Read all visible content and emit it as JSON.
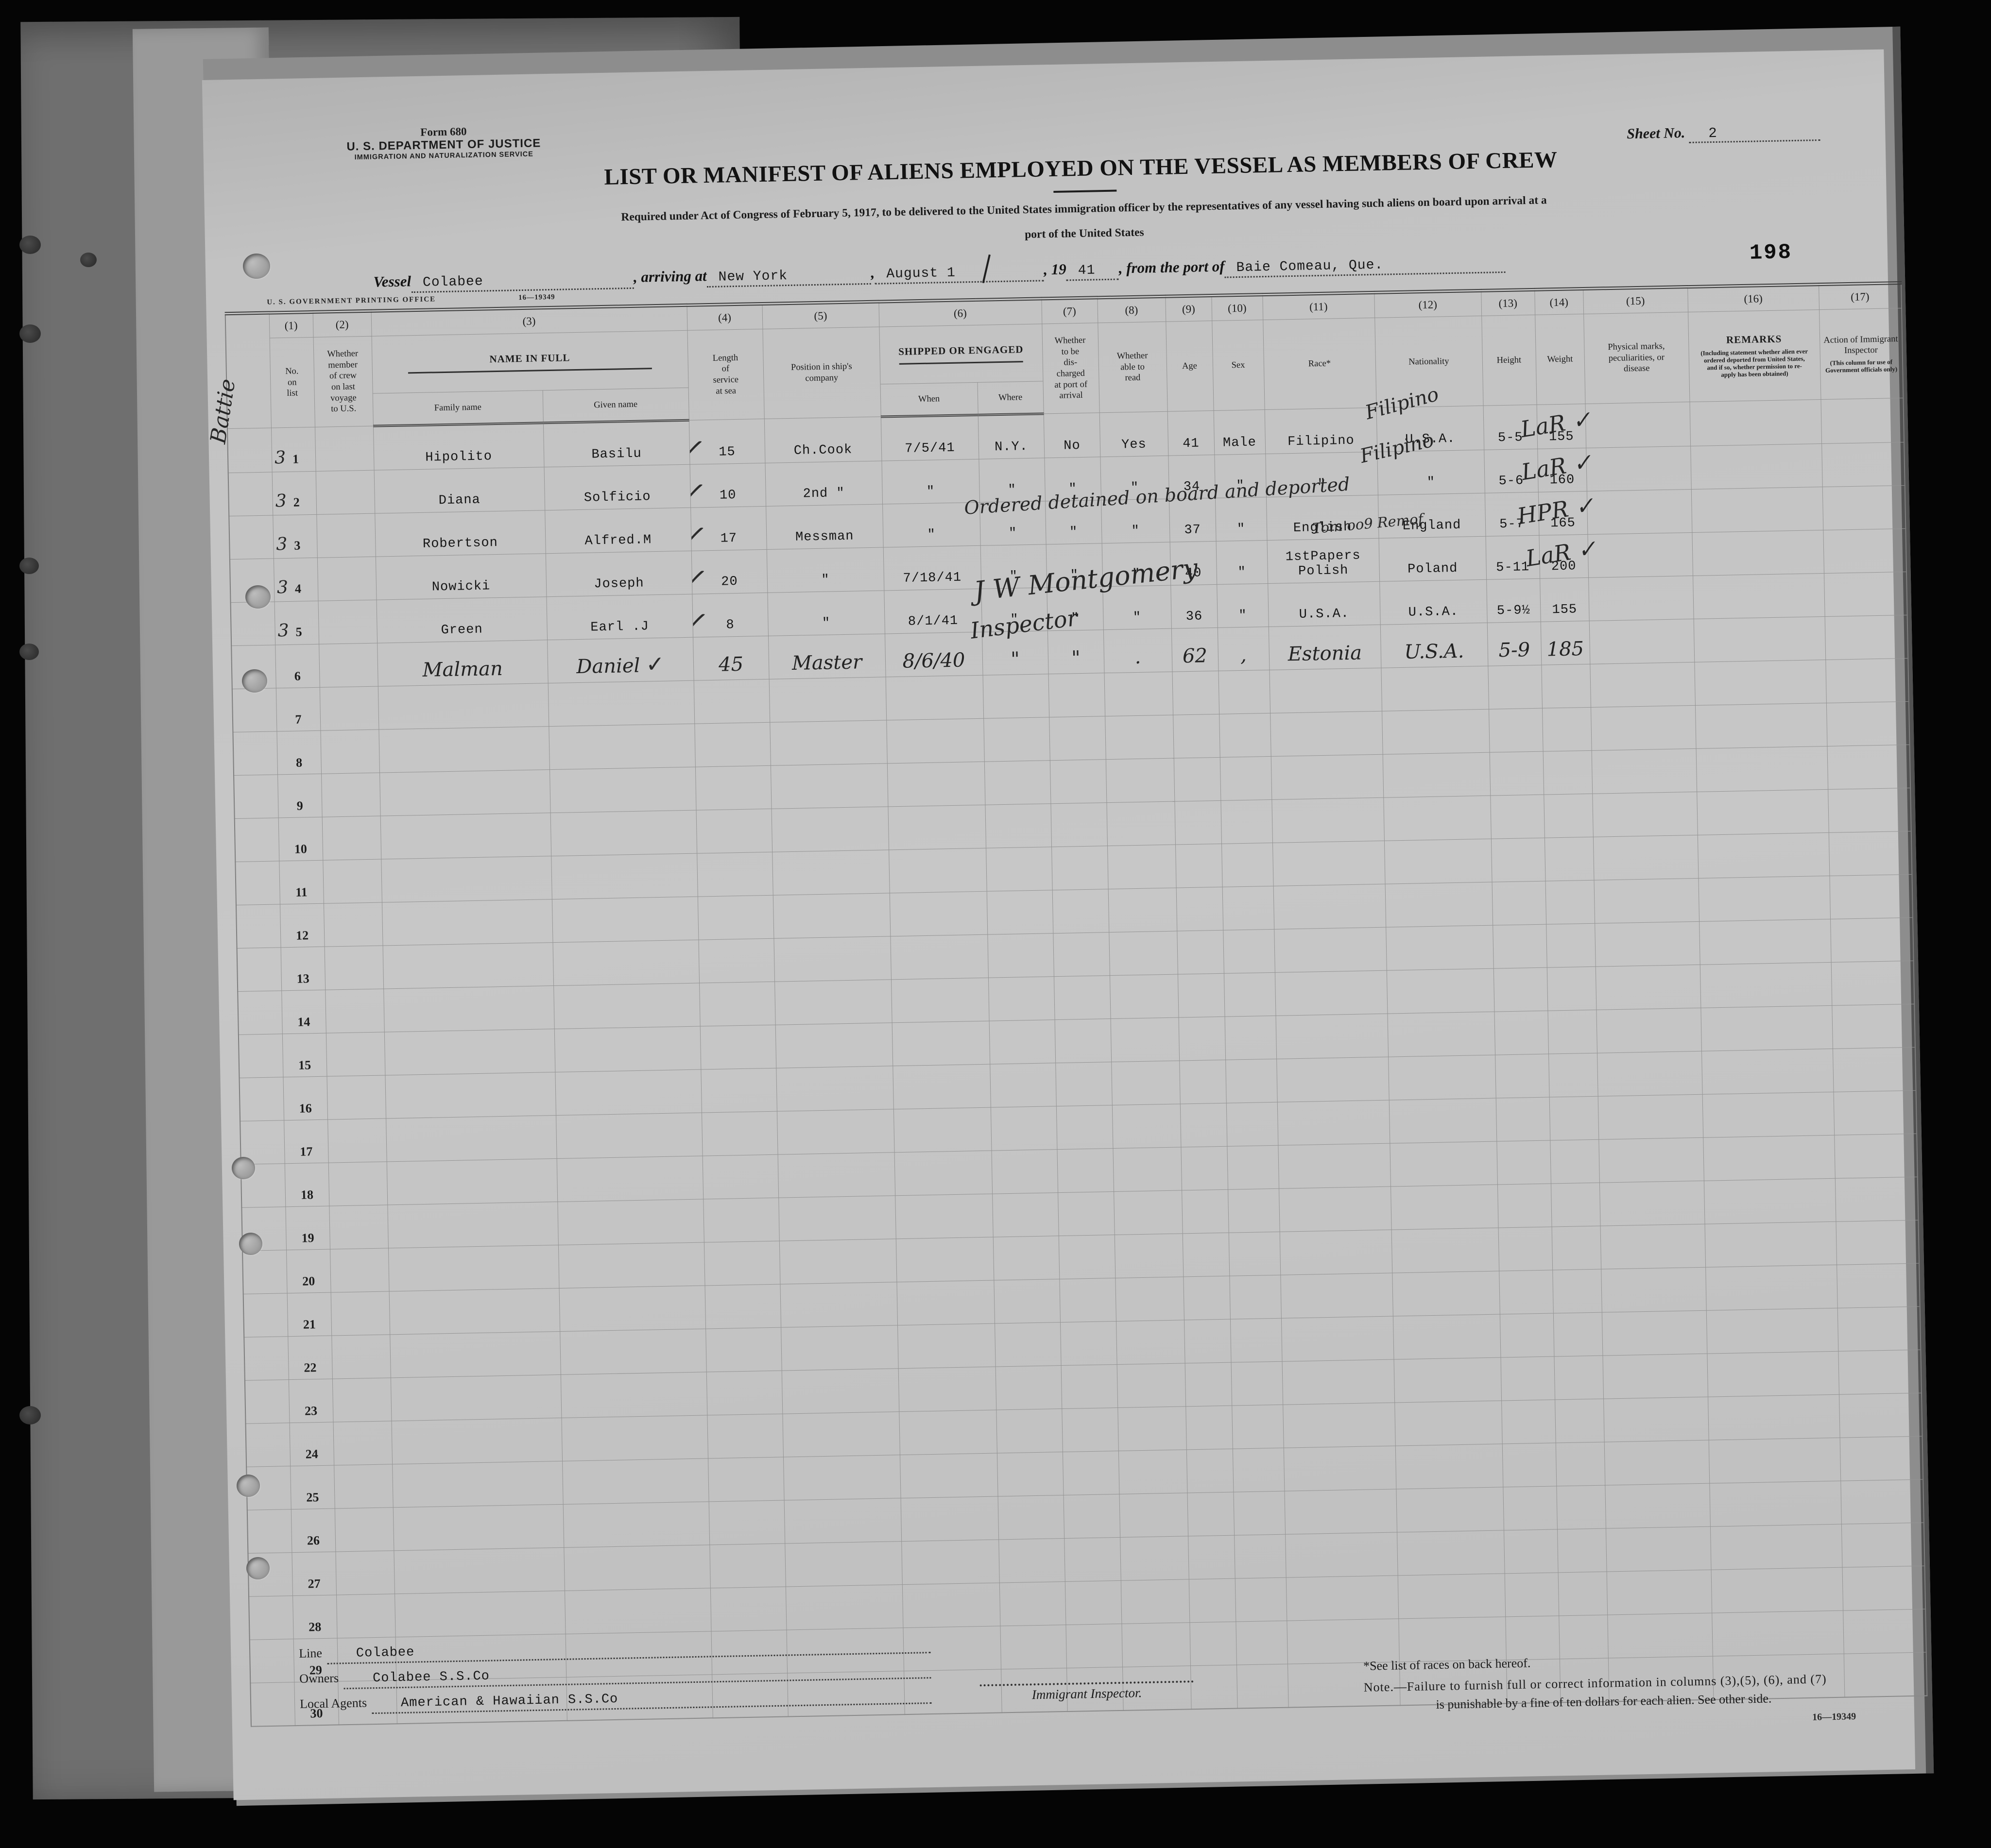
{
  "meta": {
    "form_line1": "Form 680",
    "form_line2": "U. S. DEPARTMENT OF JUSTICE",
    "form_line3": "IMMIGRATION AND NATURALIZATION SERVICE",
    "sheet_label": "Sheet No.",
    "sheet_value": "2",
    "title": "LIST OR MANIFEST OF ALIENS EMPLOYED ON THE VESSEL AS MEMBERS OF CREW",
    "subtitle1": "Required under Act of Congress of February 5, 1917, to be delivered to the United States immigration officer by the representatives of any vessel having such aliens on board upon arrival at a",
    "subtitle2": "port of the United States",
    "page_stamp": "198",
    "gpo_line": "U. S. GOVERNMENT PRINTING OFFICE",
    "gpo_number": "16—19349"
  },
  "vessel_line": {
    "vessel_label": "Vessel",
    "vessel_name": "Colabee",
    "arriving_label": ", arriving at",
    "arrival_port": "New York",
    "comma": ",",
    "arrival_date": "August 1",
    "year_label": ", 19",
    "year_typed": "41",
    "from_label": ", from the port of",
    "departure_port": "Baie Comeau, Que."
  },
  "table": {
    "col_numbers": {
      "n1": "(1)",
      "n2": "(2)",
      "n3": "(3)",
      "n4": "(4)",
      "n5": "(5)",
      "n6": "(6)",
      "n7": "(7)",
      "n8": "(8)",
      "n9": "(9)",
      "n10": "(10)",
      "n11": "(11)",
      "n12": "(12)",
      "n13": "(13)",
      "n14": "(14)",
      "n15": "(15)",
      "n16": "(16)",
      "n17": "(17)"
    },
    "headers": {
      "no": "No.\non\nlist",
      "voyage": "Whether\nmember\nof crew\non last\nvoyage\nto U.S.",
      "name": "NAME IN FULL",
      "family": "Family name",
      "given": "Given name",
      "service": "Length\nof\nservice\nat sea",
      "position": "Position in ship's\ncompany",
      "shipped": "SHIPPED OR ENGAGED",
      "when": "When",
      "where": "Where",
      "discharged": "Whether\nto be\ndis-\ncharged\nat port of\narrival",
      "read": "Whether\nable to\nread",
      "age": "Age",
      "sex": "Sex",
      "race": "Race*",
      "nationality": "Nationality",
      "height": "Height",
      "weight": "Weight",
      "marks": "Physical marks,\npeculiarities, or\ndisease",
      "remarks": "REMARKS",
      "remarks_sub": "(Including statement whether alien ever\nordered deported from United States,\nand if so, whether permission to re-\napply has been obtained)",
      "action": "Action of Immigrant\nInspector",
      "action_sub": "(This column for use of\nGovernment officials only)"
    },
    "rows": [
      {
        "no": "1",
        "pre": "3",
        "family": "Hipolito",
        "given": "Basilu",
        "check": "✓",
        "service": "15",
        "position": "Ch.Cook",
        "when": "7/5/41",
        "where": "N.Y.",
        "discharged": "No",
        "read": "Yes",
        "age": "41",
        "sex": "Male",
        "race": "Filipino",
        "nationality": "U.S.A.",
        "height": "5-5",
        "weight": "155"
      },
      {
        "no": "2",
        "pre": "3",
        "family": "Diana",
        "given": "Solficio",
        "check": "✓",
        "service": "10",
        "position": "2nd \"",
        "when": "\"",
        "where": "\"",
        "discharged": "\"",
        "read": "\"",
        "age": "34",
        "sex": "\"",
        "race": "\"",
        "nationality": "\"",
        "height": "5-6",
        "weight": "160"
      },
      {
        "no": "3",
        "pre": "3",
        "family": "Robertson",
        "given": "Alfred.M",
        "check": "✓",
        "service": "17",
        "position": "Messman",
        "when": "\"",
        "where": "\"",
        "discharged": "\"",
        "read": "\"",
        "age": "37",
        "sex": "\"",
        "race": "English",
        "nationality": "England",
        "height": "5-7",
        "weight": "165"
      },
      {
        "no": "4",
        "pre": "3",
        "family": "Nowicki",
        "given": "Joseph",
        "check": "✓",
        "service": "20",
        "position": "\"",
        "when": "7/18/41",
        "where": "\"",
        "discharged": "\"",
        "read": "\"",
        "age": "40",
        "sex": "\"",
        "race": "1stPapers\nPolish",
        "nationality": "Poland",
        "height": "5-11",
        "weight": "200"
      },
      {
        "no": "5",
        "pre": "3",
        "family": "Green",
        "given": "Earl .J",
        "check": "✓",
        "service": "8",
        "position": "\"",
        "when": "8/1/41",
        "where": "\"",
        "discharged": "\"",
        "read": "\"",
        "age": "36",
        "sex": "\"",
        "race": "U.S.A.",
        "nationality": "U.S.A.",
        "height": "5-9½",
        "weight": "155"
      },
      {
        "no": "6",
        "hw": true,
        "family": "Malman",
        "given": "Daniel",
        "given_check": "✓",
        "service": "45",
        "position": "Master",
        "when": "8/6/40",
        "where": "\"",
        "discharged": "\"",
        "read": ".",
        "age": "62",
        "sex": ",",
        "race": "Estonia",
        "nationality": "U.S.A.",
        "height": "5-9",
        "weight": "185"
      },
      {
        "no": "7"
      },
      {
        "no": "8"
      },
      {
        "no": "9"
      },
      {
        "no": "10"
      },
      {
        "no": "11"
      },
      {
        "no": "12"
      },
      {
        "no": "13"
      },
      {
        "no": "14"
      },
      {
        "no": "15"
      },
      {
        "no": "16"
      },
      {
        "no": "17"
      },
      {
        "no": "18"
      },
      {
        "no": "19"
      },
      {
        "no": "20"
      },
      {
        "no": "21"
      },
      {
        "no": "22"
      },
      {
        "no": "23"
      },
      {
        "no": "24"
      },
      {
        "no": "25"
      },
      {
        "no": "26"
      },
      {
        "no": "27"
      },
      {
        "no": "28"
      },
      {
        "no": "29"
      },
      {
        "no": "30"
      }
    ]
  },
  "annotations": {
    "race_overwrite_row1": "Filipino",
    "race_overwrite_row2": "Filipino",
    "detained_note": "Ordered detained on board and deported",
    "detained_scribble": "Tom oo9 Remof",
    "mark_row1": "LaR ✓",
    "mark_row2": "LaR ✓",
    "mark_row3": "HPR ✓",
    "mark_row4": "LaR ✓",
    "signature": "J W Montgomery",
    "signature_role": "Inspector",
    "margin_note": "Battie"
  },
  "footer": {
    "line_label": "Line",
    "line_value": "Colabee",
    "owners_label": "Owners",
    "owners_value": "Colabee S.S.Co",
    "agents_label": "Local Agents",
    "agents_value": "American & Hawaiian S.S.Co",
    "inspector_label": "Immigrant Inspector.",
    "races_note": "*See list of races on back hereof.",
    "note_line1": "Note.—Failure to furnish full or correct information in columns (3),(5), (6), and (7)",
    "note_line2": "is punishable by a fine of ten dollars for each alien.  See other side.",
    "form_number": "16—19349"
  }
}
